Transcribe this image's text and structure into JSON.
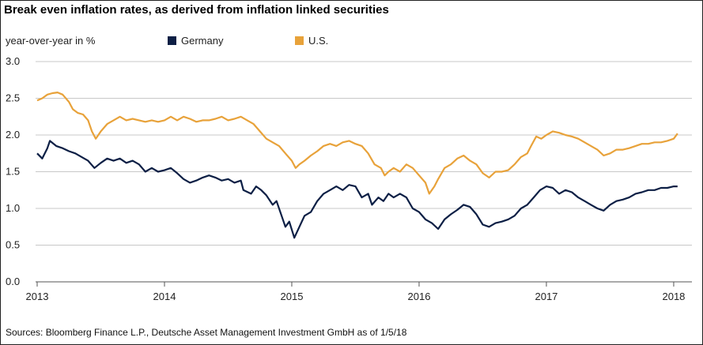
{
  "title": "Break even inflation rates, as derived from inflation linked securities",
  "source": "Sources: Bloomberg Finance L.P., Deutsche Asset Management Investment GmbH as of 1/5/18",
  "colors": {
    "germany": "#0c1f45",
    "us": "#e8a23a",
    "grid": "#c8c8c8",
    "axis": "#555555"
  },
  "chart_data": {
    "type": "line",
    "ylabel": "year-over-year in %",
    "yticks": [
      "0.0",
      "0.5",
      "1.0",
      "1.5",
      "2.0",
      "2.5",
      "3.0"
    ],
    "xticks": [
      "2013",
      "2014",
      "2015",
      "2016",
      "2017",
      "2018"
    ],
    "ylim": [
      0,
      3
    ],
    "xlim": [
      2013,
      2018.05
    ],
    "grid": true,
    "legend_position": "top",
    "series": [
      {
        "name": "Germany",
        "color": "#0c1f45",
        "points": [
          [
            2013.0,
            1.75
          ],
          [
            2013.04,
            1.68
          ],
          [
            2013.08,
            1.82
          ],
          [
            2013.1,
            1.92
          ],
          [
            2013.15,
            1.85
          ],
          [
            2013.2,
            1.82
          ],
          [
            2013.25,
            1.78
          ],
          [
            2013.3,
            1.75
          ],
          [
            2013.35,
            1.7
          ],
          [
            2013.4,
            1.65
          ],
          [
            2013.45,
            1.55
          ],
          [
            2013.5,
            1.62
          ],
          [
            2013.55,
            1.68
          ],
          [
            2013.6,
            1.65
          ],
          [
            2013.65,
            1.68
          ],
          [
            2013.7,
            1.62
          ],
          [
            2013.75,
            1.65
          ],
          [
            2013.8,
            1.6
          ],
          [
            2013.85,
            1.5
          ],
          [
            2013.9,
            1.55
          ],
          [
            2013.95,
            1.5
          ],
          [
            2014.0,
            1.52
          ],
          [
            2014.05,
            1.55
          ],
          [
            2014.1,
            1.48
          ],
          [
            2014.15,
            1.4
          ],
          [
            2014.2,
            1.35
          ],
          [
            2014.25,
            1.38
          ],
          [
            2014.3,
            1.42
          ],
          [
            2014.35,
            1.45
          ],
          [
            2014.4,
            1.42
          ],
          [
            2014.45,
            1.38
          ],
          [
            2014.5,
            1.4
          ],
          [
            2014.55,
            1.35
          ],
          [
            2014.6,
            1.38
          ],
          [
            2014.62,
            1.25
          ],
          [
            2014.68,
            1.2
          ],
          [
            2014.72,
            1.3
          ],
          [
            2014.76,
            1.25
          ],
          [
            2014.8,
            1.18
          ],
          [
            2014.85,
            1.05
          ],
          [
            2014.88,
            1.1
          ],
          [
            2014.92,
            0.9
          ],
          [
            2014.95,
            0.75
          ],
          [
            2014.98,
            0.82
          ],
          [
            2015.02,
            0.6
          ],
          [
            2015.06,
            0.75
          ],
          [
            2015.1,
            0.9
          ],
          [
            2015.15,
            0.95
          ],
          [
            2015.2,
            1.1
          ],
          [
            2015.25,
            1.2
          ],
          [
            2015.3,
            1.25
          ],
          [
            2015.35,
            1.3
          ],
          [
            2015.4,
            1.25
          ],
          [
            2015.45,
            1.32
          ],
          [
            2015.5,
            1.3
          ],
          [
            2015.55,
            1.15
          ],
          [
            2015.6,
            1.2
          ],
          [
            2015.63,
            1.05
          ],
          [
            2015.68,
            1.15
          ],
          [
            2015.72,
            1.1
          ],
          [
            2015.76,
            1.2
          ],
          [
            2015.8,
            1.15
          ],
          [
            2015.85,
            1.2
          ],
          [
            2015.9,
            1.15
          ],
          [
            2015.95,
            1.0
          ],
          [
            2016.0,
            0.95
          ],
          [
            2016.05,
            0.85
          ],
          [
            2016.1,
            0.8
          ],
          [
            2016.15,
            0.72
          ],
          [
            2016.2,
            0.85
          ],
          [
            2016.25,
            0.92
          ],
          [
            2016.3,
            0.98
          ],
          [
            2016.35,
            1.05
          ],
          [
            2016.4,
            1.02
          ],
          [
            2016.45,
            0.92
          ],
          [
            2016.5,
            0.78
          ],
          [
            2016.55,
            0.75
          ],
          [
            2016.6,
            0.8
          ],
          [
            2016.65,
            0.82
          ],
          [
            2016.7,
            0.85
          ],
          [
            2016.75,
            0.9
          ],
          [
            2016.8,
            1.0
          ],
          [
            2016.85,
            1.05
          ],
          [
            2016.9,
            1.15
          ],
          [
            2016.95,
            1.25
          ],
          [
            2017.0,
            1.3
          ],
          [
            2017.05,
            1.28
          ],
          [
            2017.1,
            1.2
          ],
          [
            2017.15,
            1.25
          ],
          [
            2017.2,
            1.22
          ],
          [
            2017.25,
            1.15
          ],
          [
            2017.3,
            1.1
          ],
          [
            2017.35,
            1.05
          ],
          [
            2017.4,
            1.0
          ],
          [
            2017.45,
            0.97
          ],
          [
            2017.5,
            1.05
          ],
          [
            2017.55,
            1.1
          ],
          [
            2017.6,
            1.12
          ],
          [
            2017.65,
            1.15
          ],
          [
            2017.7,
            1.2
          ],
          [
            2017.75,
            1.22
          ],
          [
            2017.8,
            1.25
          ],
          [
            2017.85,
            1.25
          ],
          [
            2017.9,
            1.28
          ],
          [
            2017.95,
            1.28
          ],
          [
            2018.0,
            1.3
          ],
          [
            2018.03,
            1.3
          ]
        ]
      },
      {
        "name": "U.S.",
        "color": "#e8a23a",
        "points": [
          [
            2013.0,
            2.47
          ],
          [
            2013.04,
            2.5
          ],
          [
            2013.08,
            2.55
          ],
          [
            2013.12,
            2.57
          ],
          [
            2013.16,
            2.58
          ],
          [
            2013.2,
            2.55
          ],
          [
            2013.25,
            2.45
          ],
          [
            2013.28,
            2.35
          ],
          [
            2013.32,
            2.3
          ],
          [
            2013.36,
            2.28
          ],
          [
            2013.4,
            2.2
          ],
          [
            2013.43,
            2.05
          ],
          [
            2013.46,
            1.95
          ],
          [
            2013.5,
            2.05
          ],
          [
            2013.55,
            2.15
          ],
          [
            2013.6,
            2.2
          ],
          [
            2013.65,
            2.25
          ],
          [
            2013.7,
            2.2
          ],
          [
            2013.75,
            2.22
          ],
          [
            2013.8,
            2.2
          ],
          [
            2013.85,
            2.18
          ],
          [
            2013.9,
            2.2
          ],
          [
            2013.95,
            2.18
          ],
          [
            2014.0,
            2.2
          ],
          [
            2014.05,
            2.25
          ],
          [
            2014.1,
            2.2
          ],
          [
            2014.15,
            2.25
          ],
          [
            2014.2,
            2.22
          ],
          [
            2014.25,
            2.18
          ],
          [
            2014.3,
            2.2
          ],
          [
            2014.35,
            2.2
          ],
          [
            2014.4,
            2.22
          ],
          [
            2014.45,
            2.25
          ],
          [
            2014.5,
            2.2
          ],
          [
            2014.55,
            2.22
          ],
          [
            2014.6,
            2.25
          ],
          [
            2014.65,
            2.2
          ],
          [
            2014.7,
            2.15
          ],
          [
            2014.75,
            2.05
          ],
          [
            2014.8,
            1.95
          ],
          [
            2014.85,
            1.9
          ],
          [
            2014.9,
            1.85
          ],
          [
            2014.95,
            1.75
          ],
          [
            2015.0,
            1.65
          ],
          [
            2015.03,
            1.55
          ],
          [
            2015.06,
            1.6
          ],
          [
            2015.1,
            1.65
          ],
          [
            2015.15,
            1.72
          ],
          [
            2015.2,
            1.78
          ],
          [
            2015.25,
            1.85
          ],
          [
            2015.3,
            1.88
          ],
          [
            2015.35,
            1.85
          ],
          [
            2015.4,
            1.9
          ],
          [
            2015.45,
            1.92
          ],
          [
            2015.5,
            1.88
          ],
          [
            2015.55,
            1.85
          ],
          [
            2015.6,
            1.75
          ],
          [
            2015.65,
            1.6
          ],
          [
            2015.7,
            1.55
          ],
          [
            2015.73,
            1.45
          ],
          [
            2015.76,
            1.5
          ],
          [
            2015.8,
            1.55
          ],
          [
            2015.85,
            1.5
          ],
          [
            2015.9,
            1.6
          ],
          [
            2015.95,
            1.55
          ],
          [
            2016.0,
            1.45
          ],
          [
            2016.05,
            1.35
          ],
          [
            2016.08,
            1.2
          ],
          [
            2016.12,
            1.3
          ],
          [
            2016.15,
            1.4
          ],
          [
            2016.2,
            1.55
          ],
          [
            2016.25,
            1.6
          ],
          [
            2016.3,
            1.68
          ],
          [
            2016.35,
            1.72
          ],
          [
            2016.4,
            1.65
          ],
          [
            2016.45,
            1.6
          ],
          [
            2016.5,
            1.48
          ],
          [
            2016.55,
            1.42
          ],
          [
            2016.6,
            1.5
          ],
          [
            2016.65,
            1.5
          ],
          [
            2016.7,
            1.52
          ],
          [
            2016.75,
            1.6
          ],
          [
            2016.8,
            1.7
          ],
          [
            2016.85,
            1.75
          ],
          [
            2016.88,
            1.85
          ],
          [
            2016.92,
            1.98
          ],
          [
            2016.96,
            1.95
          ],
          [
            2017.0,
            2.0
          ],
          [
            2017.05,
            2.05
          ],
          [
            2017.1,
            2.03
          ],
          [
            2017.15,
            2.0
          ],
          [
            2017.2,
            1.98
          ],
          [
            2017.25,
            1.95
          ],
          [
            2017.3,
            1.9
          ],
          [
            2017.35,
            1.85
          ],
          [
            2017.4,
            1.8
          ],
          [
            2017.45,
            1.72
          ],
          [
            2017.5,
            1.75
          ],
          [
            2017.55,
            1.8
          ],
          [
            2017.6,
            1.8
          ],
          [
            2017.65,
            1.82
          ],
          [
            2017.7,
            1.85
          ],
          [
            2017.75,
            1.88
          ],
          [
            2017.8,
            1.88
          ],
          [
            2017.85,
            1.9
          ],
          [
            2017.9,
            1.9
          ],
          [
            2017.95,
            1.92
          ],
          [
            2018.0,
            1.95
          ],
          [
            2018.03,
            2.02
          ]
        ]
      }
    ]
  }
}
